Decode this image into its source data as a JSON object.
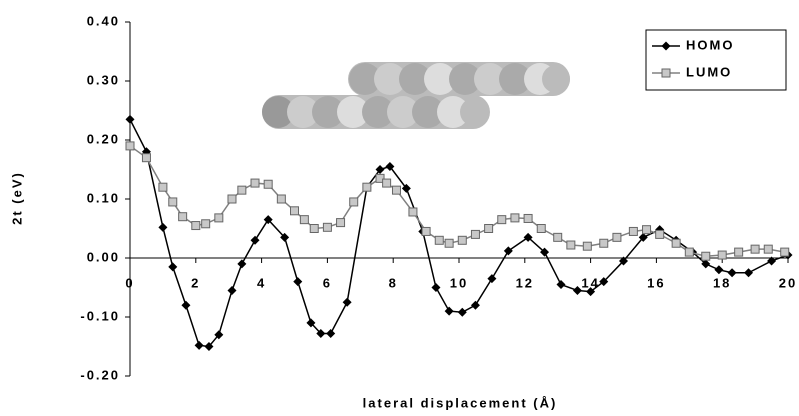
{
  "chart_data": {
    "type": "line",
    "xlabel": "lateral displacement (Å)",
    "ylabel": "2t (eV)",
    "xlim": [
      0,
      20
    ],
    "xticks": [
      0,
      2,
      4,
      6,
      8,
      10,
      12,
      14,
      16,
      18,
      20
    ],
    "ylim": [
      -0.2,
      0.4
    ],
    "yticks": [
      {
        "value": -0.2,
        "label": "-0.20"
      },
      {
        "value": -0.1,
        "label": "-0.10"
      },
      {
        "value": 0,
        "label": "0.00"
      },
      {
        "value": 0.1,
        "label": "0.10"
      },
      {
        "value": 0.2,
        "label": "0.20"
      },
      {
        "value": 0.3,
        "label": "0.30"
      },
      {
        "value": 0.4,
        "label": "0.40"
      }
    ],
    "legend": "top-right",
    "series": [
      {
        "name": "HOMO",
        "color": "#000000",
        "marker": "diamond",
        "x": [
          0,
          0.5,
          1,
          1.3,
          1.7,
          2.1,
          2.4,
          2.7,
          3.1,
          3.4,
          3.8,
          4.2,
          4.7,
          5.1,
          5.5,
          5.8,
          6.1,
          6.6,
          7.2,
          7.6,
          7.9,
          8.4,
          8.9,
          9.3,
          9.7,
          10.1,
          10.5,
          11,
          11.5,
          12.1,
          12.6,
          13.1,
          13.6,
          14,
          14.4,
          15,
          15.6,
          16.1,
          16.6,
          17.1,
          17.5,
          17.9,
          18.3,
          18.8,
          19.5,
          20
        ],
        "values": [
          0.235,
          0.18,
          0.052,
          -0.015,
          -0.08,
          -0.148,
          -0.15,
          -0.13,
          -0.055,
          -0.01,
          0.03,
          0.065,
          0.035,
          -0.04,
          -0.11,
          -0.128,
          -0.128,
          -0.075,
          0.12,
          0.15,
          0.155,
          0.118,
          0.045,
          -0.05,
          -0.09,
          -0.092,
          -0.08,
          -0.035,
          0.012,
          0.035,
          0.01,
          -0.045,
          -0.055,
          -0.057,
          -0.04,
          -0.005,
          0.035,
          0.048,
          0.03,
          0.01,
          -0.01,
          -0.02,
          -0.025,
          -0.025,
          -0.005,
          0.005
        ]
      },
      {
        "name": "LUMO",
        "color": "#808080",
        "marker": "square",
        "x": [
          0,
          0.5,
          1,
          1.3,
          1.6,
          2,
          2.3,
          2.7,
          3.1,
          3.4,
          3.8,
          4.2,
          4.6,
          5,
          5.3,
          5.6,
          6,
          6.4,
          6.8,
          7.2,
          7.6,
          7.8,
          8.1,
          8.6,
          9,
          9.4,
          9.7,
          10.1,
          10.5,
          10.9,
          11.3,
          11.7,
          12.1,
          12.5,
          13,
          13.4,
          13.9,
          14.4,
          14.8,
          15.3,
          15.7,
          16.1,
          16.6,
          17,
          17.5,
          18,
          18.5,
          19,
          19.4,
          19.9
        ],
        "values": [
          0.19,
          0.17,
          0.12,
          0.095,
          0.07,
          0.055,
          0.058,
          0.068,
          0.1,
          0.115,
          0.127,
          0.125,
          0.1,
          0.08,
          0.065,
          0.05,
          0.052,
          0.06,
          0.095,
          0.12,
          0.135,
          0.127,
          0.115,
          0.078,
          0.045,
          0.03,
          0.025,
          0.03,
          0.04,
          0.05,
          0.065,
          0.068,
          0.067,
          0.05,
          0.035,
          0.022,
          0.02,
          0.025,
          0.035,
          0.045,
          0.048,
          0.04,
          0.025,
          0.01,
          0.003,
          0.005,
          0.01,
          0.015,
          0.015,
          0.01
        ]
      }
    ]
  }
}
